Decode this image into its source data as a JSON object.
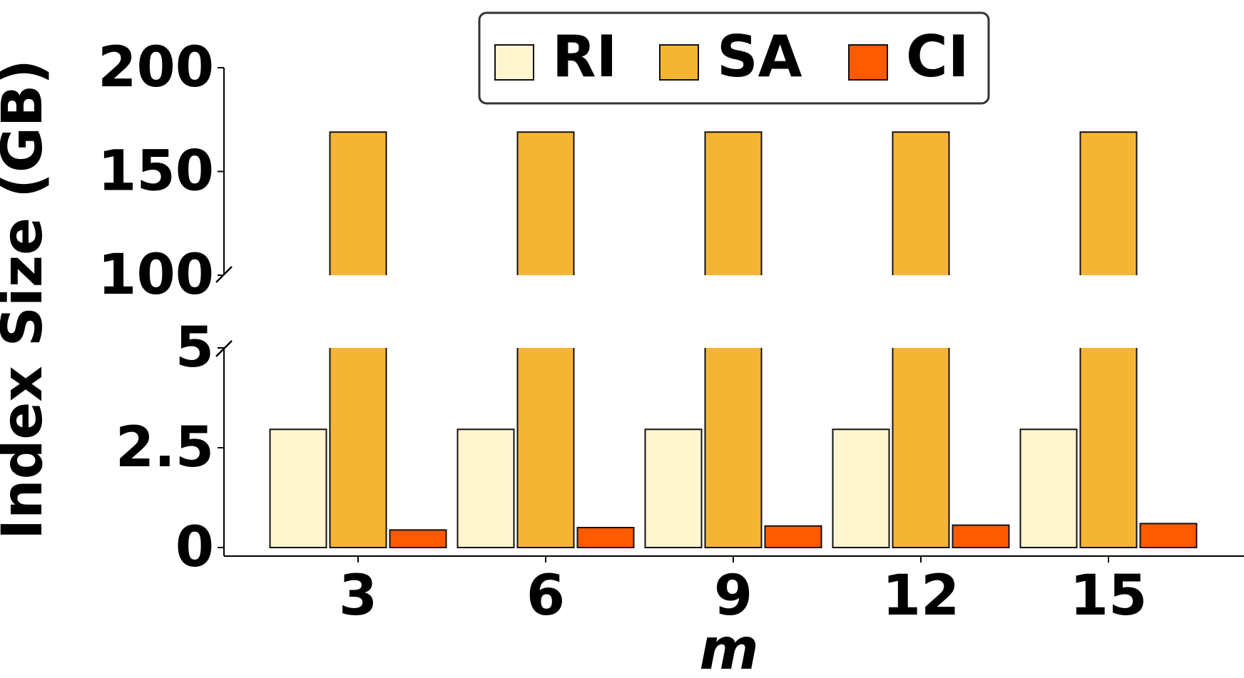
{
  "chart_data": {
    "type": "bar",
    "title": "",
    "xlabel": "m",
    "ylabel": "Index Size (GB)",
    "categories": [
      "3",
      "6",
      "9",
      "12",
      "15"
    ],
    "broken_y_axis": true,
    "ylim_bottom": [
      0,
      5
    ],
    "ylim_top": [
      100,
      200
    ],
    "yticks_bottom": [
      "0",
      "2.5",
      "5"
    ],
    "yticks_top": [
      "100",
      "150",
      "200"
    ],
    "legend_position": "upper center",
    "grid": false,
    "series": [
      {
        "name": "RI",
        "color": "#FFF5CF",
        "values": [
          2.96,
          2.96,
          2.96,
          2.96,
          2.96
        ]
      },
      {
        "name": "SA",
        "color": "#F5B534",
        "values": [
          169,
          169,
          169,
          169,
          169
        ]
      },
      {
        "name": "CI",
        "color": "#FF5A00",
        "values": [
          0.44,
          0.5,
          0.54,
          0.56,
          0.6
        ]
      }
    ]
  },
  "legend": {
    "items": [
      {
        "label": "RI",
        "color": "#FFF5CF"
      },
      {
        "label": "SA",
        "color": "#F5B534"
      },
      {
        "label": "CI",
        "color": "#FF5A00"
      }
    ]
  }
}
